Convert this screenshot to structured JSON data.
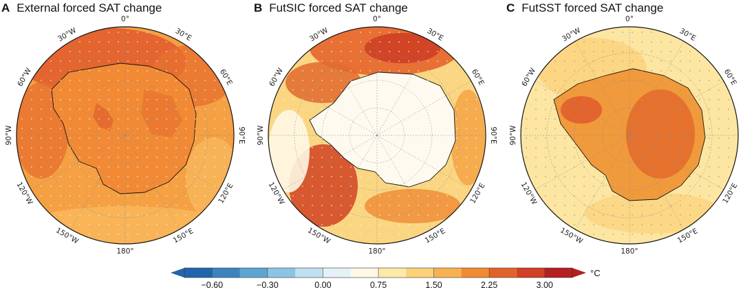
{
  "panels": [
    {
      "letter": "A",
      "title": "External forced SAT change",
      "pattern": "external"
    },
    {
      "letter": "B",
      "title": "FutSIC forced SAT change",
      "pattern": "sic"
    },
    {
      "letter": "C",
      "title": "FutSST forced SAT change",
      "pattern": "sst"
    }
  ],
  "longitude_labels": [
    "0°",
    "30°E",
    "60°E",
    "90°E",
    "120°E",
    "150°E",
    "180°",
    "150°W",
    "120°W",
    "90°W",
    "60°W",
    "30°W"
  ],
  "colorbar": {
    "unit": "°C",
    "tick_labels": [
      "−0.60",
      "−0.30",
      "0.00",
      "0.75",
      "1.50",
      "2.25",
      "3.00"
    ],
    "colors": [
      "#2166ac",
      "#3a85c0",
      "#5ea4d3",
      "#8cc5e3",
      "#bfe0f0",
      "#e4f2f8",
      "#fff8e6",
      "#fde9a8",
      "#fbd27a",
      "#f7b150",
      "#f08a33",
      "#e2632a",
      "#d13f25",
      "#b51f22"
    ]
  }
}
